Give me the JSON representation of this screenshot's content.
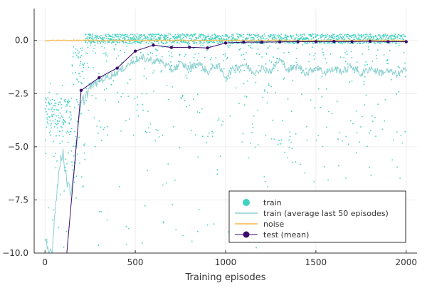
{
  "chart_data": {
    "type": "scatter",
    "title": "",
    "xlabel": "Training episodes",
    "ylabel": "",
    "xlim": [
      -60,
      2060
    ],
    "ylim": [
      -10.0,
      1.5
    ],
    "xticks": [
      0,
      500,
      1000,
      1500,
      2000
    ],
    "xtick_labels": [
      "0",
      "500",
      "1000",
      "1500",
      "2000"
    ],
    "yticks": [
      0.0,
      -2.5,
      -5.0,
      -7.5,
      -10.0
    ],
    "ytick_labels": [
      "0.0",
      "−2.5",
      "−5.0",
      "−7.5",
      "−10.0"
    ],
    "grid": true,
    "legend_position": "bottom-right",
    "colors": {
      "train": "#40d2c0",
      "train_avg": "#8ccfd0",
      "noise": "#f6b84a",
      "test": "#3a0a6e",
      "axis": "#333333",
      "grid": "#e8e8e8"
    },
    "series": [
      {
        "name": "train",
        "kind": "scatter",
        "note": "per-episode returns, one point per episode (2000 episodes); dense band near 0.0 after ~150 episodes, early cluster around -3.5, sparse outliers down to -10",
        "n_points": 2000
      },
      {
        "name": "train (average last 50 episodes)",
        "kind": "line",
        "x": [
          0,
          20,
          40,
          60,
          80,
          100,
          120,
          140,
          160,
          180,
          200,
          250,
          300,
          350,
          400,
          450,
          500,
          550,
          600,
          650,
          700,
          750,
          800,
          850,
          900,
          950,
          1000,
          1050,
          1100,
          1150,
          1200,
          1250,
          1300,
          1350,
          1400,
          1450,
          1500,
          1550,
          1600,
          1650,
          1700,
          1750,
          1800,
          1850,
          1900,
          1950,
          2000
        ],
        "y": [
          -9.5,
          -10.0,
          -9.8,
          -7.5,
          -6.0,
          -5.2,
          -6.5,
          -7.2,
          -6.2,
          -4.5,
          -3.0,
          -2.2,
          -1.9,
          -1.7,
          -1.5,
          -1.2,
          -0.9,
          -0.85,
          -0.95,
          -1.0,
          -1.4,
          -1.1,
          -1.3,
          -1.05,
          -1.5,
          -1.15,
          -1.7,
          -1.3,
          -1.1,
          -1.5,
          -1.3,
          -1.45,
          -0.9,
          -1.4,
          -1.2,
          -1.55,
          -1.25,
          -1.5,
          -1.35,
          -1.45,
          -1.2,
          -1.6,
          -1.3,
          -1.5,
          -1.45,
          -1.6,
          -1.4
        ]
      },
      {
        "name": "noise",
        "kind": "line",
        "note": "near-constant at about 0.0 with tiny jitter across all 2000 episodes",
        "x": [
          0,
          2000
        ],
        "y": [
          0.0,
          0.0
        ]
      },
      {
        "name": "test (mean)",
        "kind": "line+markers",
        "x": [
          100,
          200,
          300,
          400,
          500,
          600,
          700,
          800,
          900,
          1000,
          1100,
          1200,
          1300,
          1400,
          1500,
          1600,
          1700,
          1800,
          1900,
          2000
        ],
        "y": [
          -12.0,
          -2.35,
          -1.75,
          -1.3,
          -0.5,
          -0.22,
          -0.33,
          -0.32,
          -0.35,
          -0.12,
          -0.08,
          -0.08,
          -0.07,
          -0.06,
          -0.06,
          -0.05,
          -0.06,
          -0.04,
          -0.06,
          -0.06
        ]
      }
    ],
    "legend": [
      {
        "label": "train",
        "symbol": "circle",
        "colorKey": "train"
      },
      {
        "label": "train (average last 50 episodes)",
        "symbol": "line",
        "colorKey": "train_avg"
      },
      {
        "label": "noise",
        "symbol": "line",
        "colorKey": "noise"
      },
      {
        "label": "test (mean)",
        "symbol": "line-marker",
        "colorKey": "test"
      }
    ]
  }
}
